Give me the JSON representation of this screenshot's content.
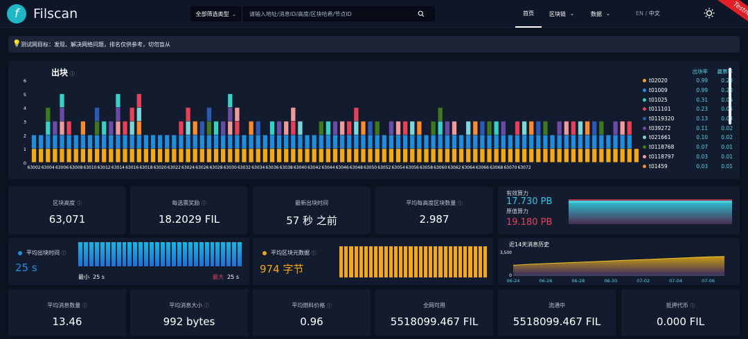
{
  "header": {
    "brand": "Filscan",
    "logo_glyph": "f",
    "search_filter": "全部筛选类型",
    "search_placeholder": "请输入地址/消息ID/高度/区块哈希/节点ID",
    "nav": {
      "home": "首页",
      "blockchain": "区块链",
      "data": "数据"
    },
    "lang_en": "EN",
    "lang_sep": "/",
    "lang_zh": "中文",
    "network_badge": "Testnet",
    "icons": [
      "search-icon",
      "sun-icon",
      "chevron-down-icon"
    ]
  },
  "notice": {
    "text": "测试网目标：发现、解决网络问题，排名仅供参考，切勿盲从",
    "icon": "lightbulb-icon"
  },
  "blocks_chart": {
    "title": "出块",
    "legend_headers": {
      "rate": "出块率",
      "vote": "赢票率"
    },
    "legend": [
      {
        "name": "t02020",
        "rate": "0.99",
        "vote": "0.20",
        "color": "#f5a80f"
      },
      {
        "name": "t01009",
        "rate": "0.99",
        "vote": "0.20",
        "color": "#1e8fe0"
      },
      {
        "name": "t01025",
        "rate": "0.31",
        "vote": "0.06",
        "color": "#34d1c4"
      },
      {
        "name": "t011101",
        "rate": "0.23",
        "vote": "0.05",
        "color": "#e84156"
      },
      {
        "name": "t0119320",
        "rate": "0.13",
        "vote": "0.03",
        "color": "#2a5ab5"
      },
      {
        "name": "t039272",
        "rate": "0.11",
        "vote": "0.02",
        "color": "#6a4ba8"
      },
      {
        "name": "t021661",
        "rate": "0.10",
        "vote": "0.02",
        "color": "#7ad8d8"
      },
      {
        "name": "t0118768",
        "rate": "0.07",
        "vote": "0.01",
        "color": "#3e7a1c"
      },
      {
        "name": "t0118797",
        "rate": "0.03",
        "vote": "0.01",
        "color": "#f29a9a"
      },
      {
        "name": "t01459",
        "rate": "0.03",
        "vote": "0.01",
        "color": "#ff8a2a"
      }
    ]
  },
  "chart_data": {
    "type": "bar",
    "title": "出块",
    "stacked": true,
    "y_ticks": [
      "0",
      "1",
      "2",
      "3",
      "4",
      "5",
      "6"
    ],
    "ylim": [
      0,
      6
    ],
    "x_tick_labels": [
      "63002",
      "63004",
      "63006",
      "63008",
      "63010",
      "63012",
      "63014",
      "63016",
      "63018",
      "63020",
      "63022",
      "63024",
      "63026",
      "63028",
      "63030",
      "63032",
      "63034",
      "63036",
      "63038",
      "63040",
      "63042",
      "63044",
      "63046",
      "63048",
      "63050",
      "63052",
      "63054",
      "63056",
      "63058",
      "63060",
      "63062",
      "63064",
      "63066",
      "63068",
      "63070",
      "63072"
    ],
    "x_start": 63002,
    "block_counts": [
      2,
      2,
      4,
      3,
      5,
      3,
      2,
      3,
      2,
      4,
      3,
      3,
      5,
      3,
      4,
      5,
      2,
      2,
      2,
      2,
      2,
      3,
      4,
      3,
      3,
      4,
      3,
      3,
      5,
      4,
      2,
      3,
      3,
      2,
      3,
      3,
      3,
      4,
      3,
      2,
      2,
      3,
      3,
      3,
      3,
      3,
      4,
      3,
      3,
      3,
      2,
      3,
      3,
      3,
      3,
      3,
      2,
      3,
      4,
      3,
      3,
      2,
      3,
      3,
      3,
      3,
      3,
      3,
      2,
      3,
      3,
      3,
      3,
      3,
      2,
      3,
      3,
      3,
      3,
      3,
      3,
      3,
      2,
      3,
      3,
      3,
      1
    ],
    "color_legend_order": [
      "t02020",
      "t01009",
      "t01025",
      "t011101",
      "t0119320",
      "t039272",
      "t021661",
      "t0118768",
      "t0118797",
      "t01459"
    ]
  },
  "stats": {
    "height": {
      "label": "区块高度",
      "value": "63,071"
    },
    "reward": {
      "label": "每选票奖励",
      "value": "18.2029 FIL"
    },
    "latest": {
      "label": "最新出块时间",
      "value": "57 秒 之前"
    },
    "avg_blocks": {
      "label": "平均每高度区块数量",
      "value": "2.987"
    },
    "power": {
      "effective_label": "有效算力",
      "effective_value": "17.730 PB",
      "raw_label": "原值算力",
      "raw_value": "19.180 PB",
      "effective_color": "#2ec8e8",
      "raw_color": "#e84156"
    },
    "avg_block_time": {
      "label": "平均出块时间",
      "value": "25 s",
      "min_label": "最小",
      "min_value": "25 s",
      "max_label": "最大",
      "max_value": "25 s",
      "color": "#1e8fe0",
      "bar_count": 30
    },
    "avg_block_size": {
      "label": "平均区块元数据",
      "value": "974 字节",
      "color": "#f5a80f",
      "bar_count": 30
    },
    "msg_history": {
      "title": "近14天消息历史",
      "y_ticks": [
        "3,500",
        "0"
      ],
      "x_ticks": [
        "06-24",
        "06-26",
        "06-28",
        "06-30",
        "07-02",
        "07-04",
        "07-06"
      ],
      "ylim": [
        0,
        3500
      ],
      "values": [
        1500,
        1650,
        1750,
        1850,
        1950,
        2050,
        2150,
        2250,
        2350,
        2450,
        2550,
        2650,
        2750,
        2800
      ]
    },
    "avg_msg_count": {
      "label": "平均消息数量",
      "value": "13.46"
    },
    "avg_msg_size": {
      "label": "平均消息大小",
      "value": "992 bytes"
    },
    "avg_gas_price": {
      "label": "平均燃料价格",
      "value": "0.96"
    },
    "available": {
      "label": "全网可用",
      "value": "5518099.467 FIL"
    },
    "circulating": {
      "label": "流通中",
      "value": "5518099.467 FIL"
    },
    "pledged": {
      "label": "抵押代币",
      "value": "0.000 FIL"
    }
  }
}
